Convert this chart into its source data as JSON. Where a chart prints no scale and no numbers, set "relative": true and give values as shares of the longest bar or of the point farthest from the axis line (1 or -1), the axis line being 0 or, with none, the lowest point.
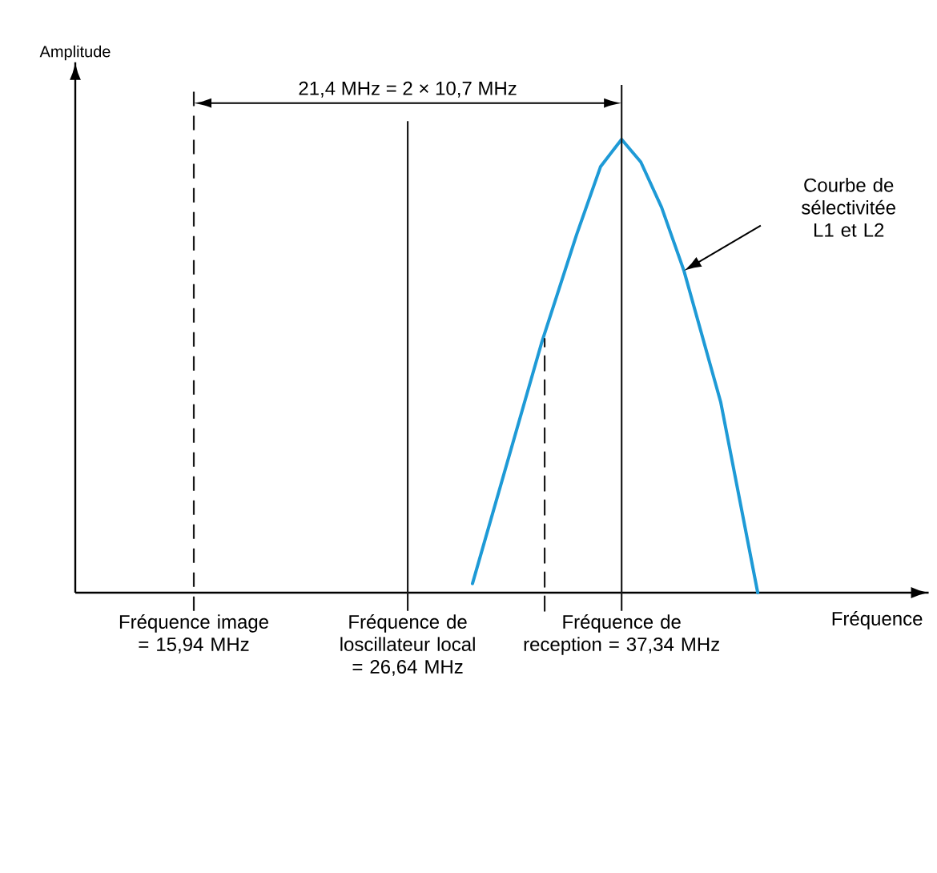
{
  "chart_data": {
    "type": "line",
    "relative": true,
    "xlabel": "Fréquence",
    "ylabel": "Amplitude",
    "xlim": [
      10.01,
      52.7
    ],
    "tick_labels": "x",
    "grid": false,
    "marker": "none",
    "xticks": [
      {
        "value": 15.94,
        "label": "Fréquence image = 15,94 MHz"
      },
      {
        "value": 26.64,
        "label": "Fréquence de loscillateur local = 26,64 MHz"
      },
      {
        "value": 37.34,
        "label": "Fréquence de reception = 37,34 MHz"
      }
    ],
    "series": [
      {
        "color": "#1e9ad6",
        "line_style": "solid",
        "x": [
          29.88,
          33.33,
          35.09,
          36.29,
          37.34,
          38.3,
          39.34,
          40.46,
          42.3,
          44.15
        ],
        "values": [
          0.02,
          0.55,
          0.79,
          0.94,
          1.0,
          0.95,
          0.85,
          0.71,
          0.42,
          0.0
        ]
      },
      {
        "color": "#1a1a1a",
        "line_style": "dashed",
        "x": [
          33.49,
          33.49
        ],
        "values": [
          -0.04,
          0.56
        ]
      }
    ],
    "ref_lines": [
      {
        "axis": "x",
        "value": 15.94,
        "line_style": "dashed",
        "color": "#1a1a1a"
      },
      {
        "axis": "x",
        "value": 26.64,
        "line_style": "solid",
        "color": "#1a1a1a"
      },
      {
        "axis": "x",
        "value": 37.34,
        "line_style": "solid",
        "color": "#1a1a1a"
      }
    ],
    "annotations": [
      "21,4 MHz = 2 × 10,7 MHz",
      "Courbe de sélectivitée L1 et L2"
    ]
  }
}
